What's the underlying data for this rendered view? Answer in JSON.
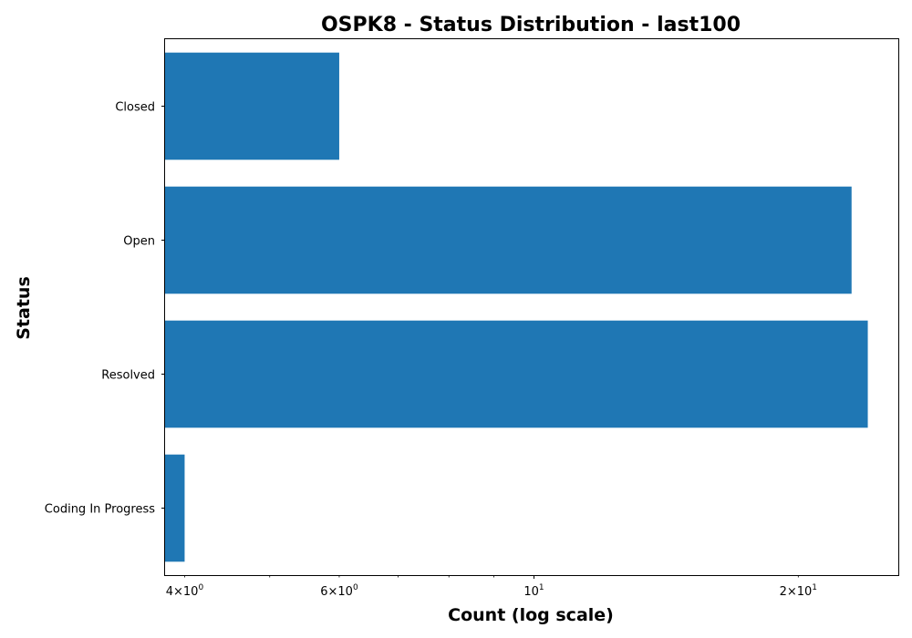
{
  "chart_data": {
    "type": "bar",
    "orientation": "horizontal",
    "title": "OSPK8 - Status Distribution - last100",
    "xlabel": "Count (log scale)",
    "ylabel": "Status",
    "x_scale": "log",
    "xlim": [
      3.8,
      26
    ],
    "categories": [
      "Closed",
      "Open",
      "Resolved",
      "Coding In Progress"
    ],
    "values": [
      6,
      23,
      24,
      4
    ],
    "bar_color": "#1f77b4",
    "major_ticks": [
      {
        "value": 10,
        "base": "10",
        "exp": "1",
        "coef": ""
      }
    ],
    "minor_ticks": [
      {
        "value": 4,
        "coef": "4",
        "base": "10",
        "exp": "0"
      },
      {
        "value": 6,
        "coef": "6",
        "base": "10",
        "exp": "0"
      },
      {
        "value": 20,
        "coef": "2",
        "base": "10",
        "exp": "1"
      }
    ],
    "unlabeled_minor_ticks": [
      5,
      7,
      8,
      9
    ],
    "grid": false,
    "legend": "none"
  }
}
